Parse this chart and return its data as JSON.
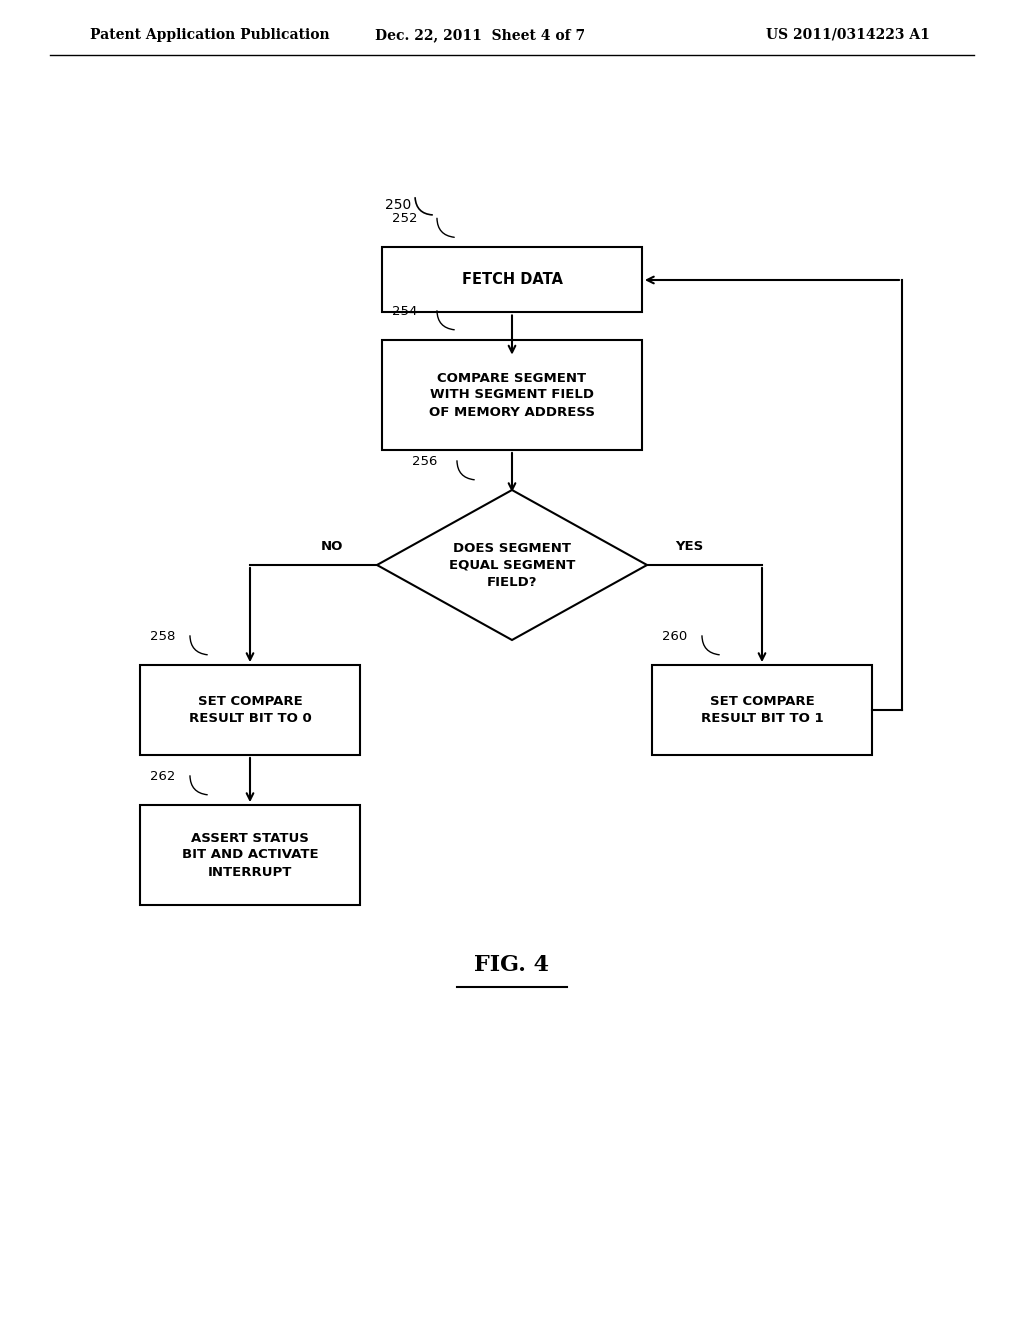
{
  "bg_color": "#ffffff",
  "header_left": "Patent Application Publication",
  "header_mid": "Dec. 22, 2011  Sheet 4 of 7",
  "header_right": "US 2011/0314223 A1",
  "fig_label": "FIG. 4",
  "label_250": "250",
  "label_252": "252",
  "label_254": "254",
  "label_256": "256",
  "label_258": "258",
  "label_260": "260",
  "label_262": "262",
  "box_252_text": "FETCH DATA",
  "box_254_text": "COMPARE SEGMENT\nWITH SEGMENT FIELD\nOF MEMORY ADDRESS",
  "diamond_256_text": "DOES SEGMENT\nEQUAL SEGMENT\nFIELD?",
  "box_258_text": "SET COMPARE\nRESULT BIT TO 0",
  "box_260_text": "SET COMPARE\nRESULT BIT TO 1",
  "box_262_text": "ASSERT STATUS\nBIT AND ACTIVATE\nINTERRUPT",
  "label_no": "NO",
  "label_yes": "YES"
}
